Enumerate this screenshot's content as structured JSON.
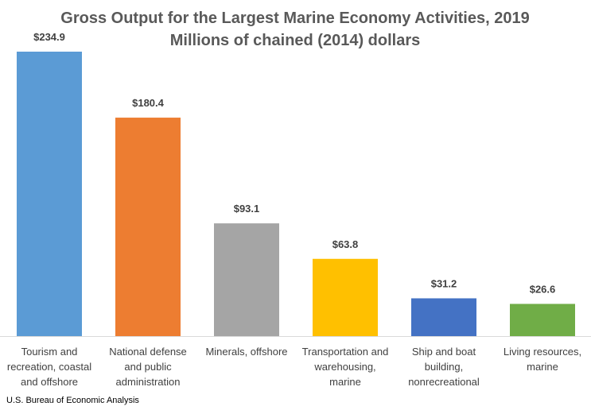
{
  "chart_data": {
    "type": "bar",
    "title": "Gross Output for the Largest Marine Economy Activities, 2019",
    "subtitle": "Millions of chained (2014) dollars",
    "categories": [
      "Tourism and recreation, coastal and offshore",
      "National defense and public administration",
      "Minerals, offshore",
      "Transportation and warehousing, marine",
      "Ship and boat building, nonrecreational",
      "Living resources, marine"
    ],
    "values": [
      234.9,
      180.4,
      93.1,
      63.8,
      31.2,
      26.6
    ],
    "value_labels": [
      "$234.9",
      "$180.4",
      "$93.1",
      "$63.8",
      "$31.2",
      "$26.6"
    ],
    "colors": [
      "#5b9bd5",
      "#ed7d31",
      "#a5a5a5",
      "#ffc000",
      "#4472c4",
      "#70ad47"
    ],
    "source": "U.S. Bureau of Economic Analysis"
  }
}
